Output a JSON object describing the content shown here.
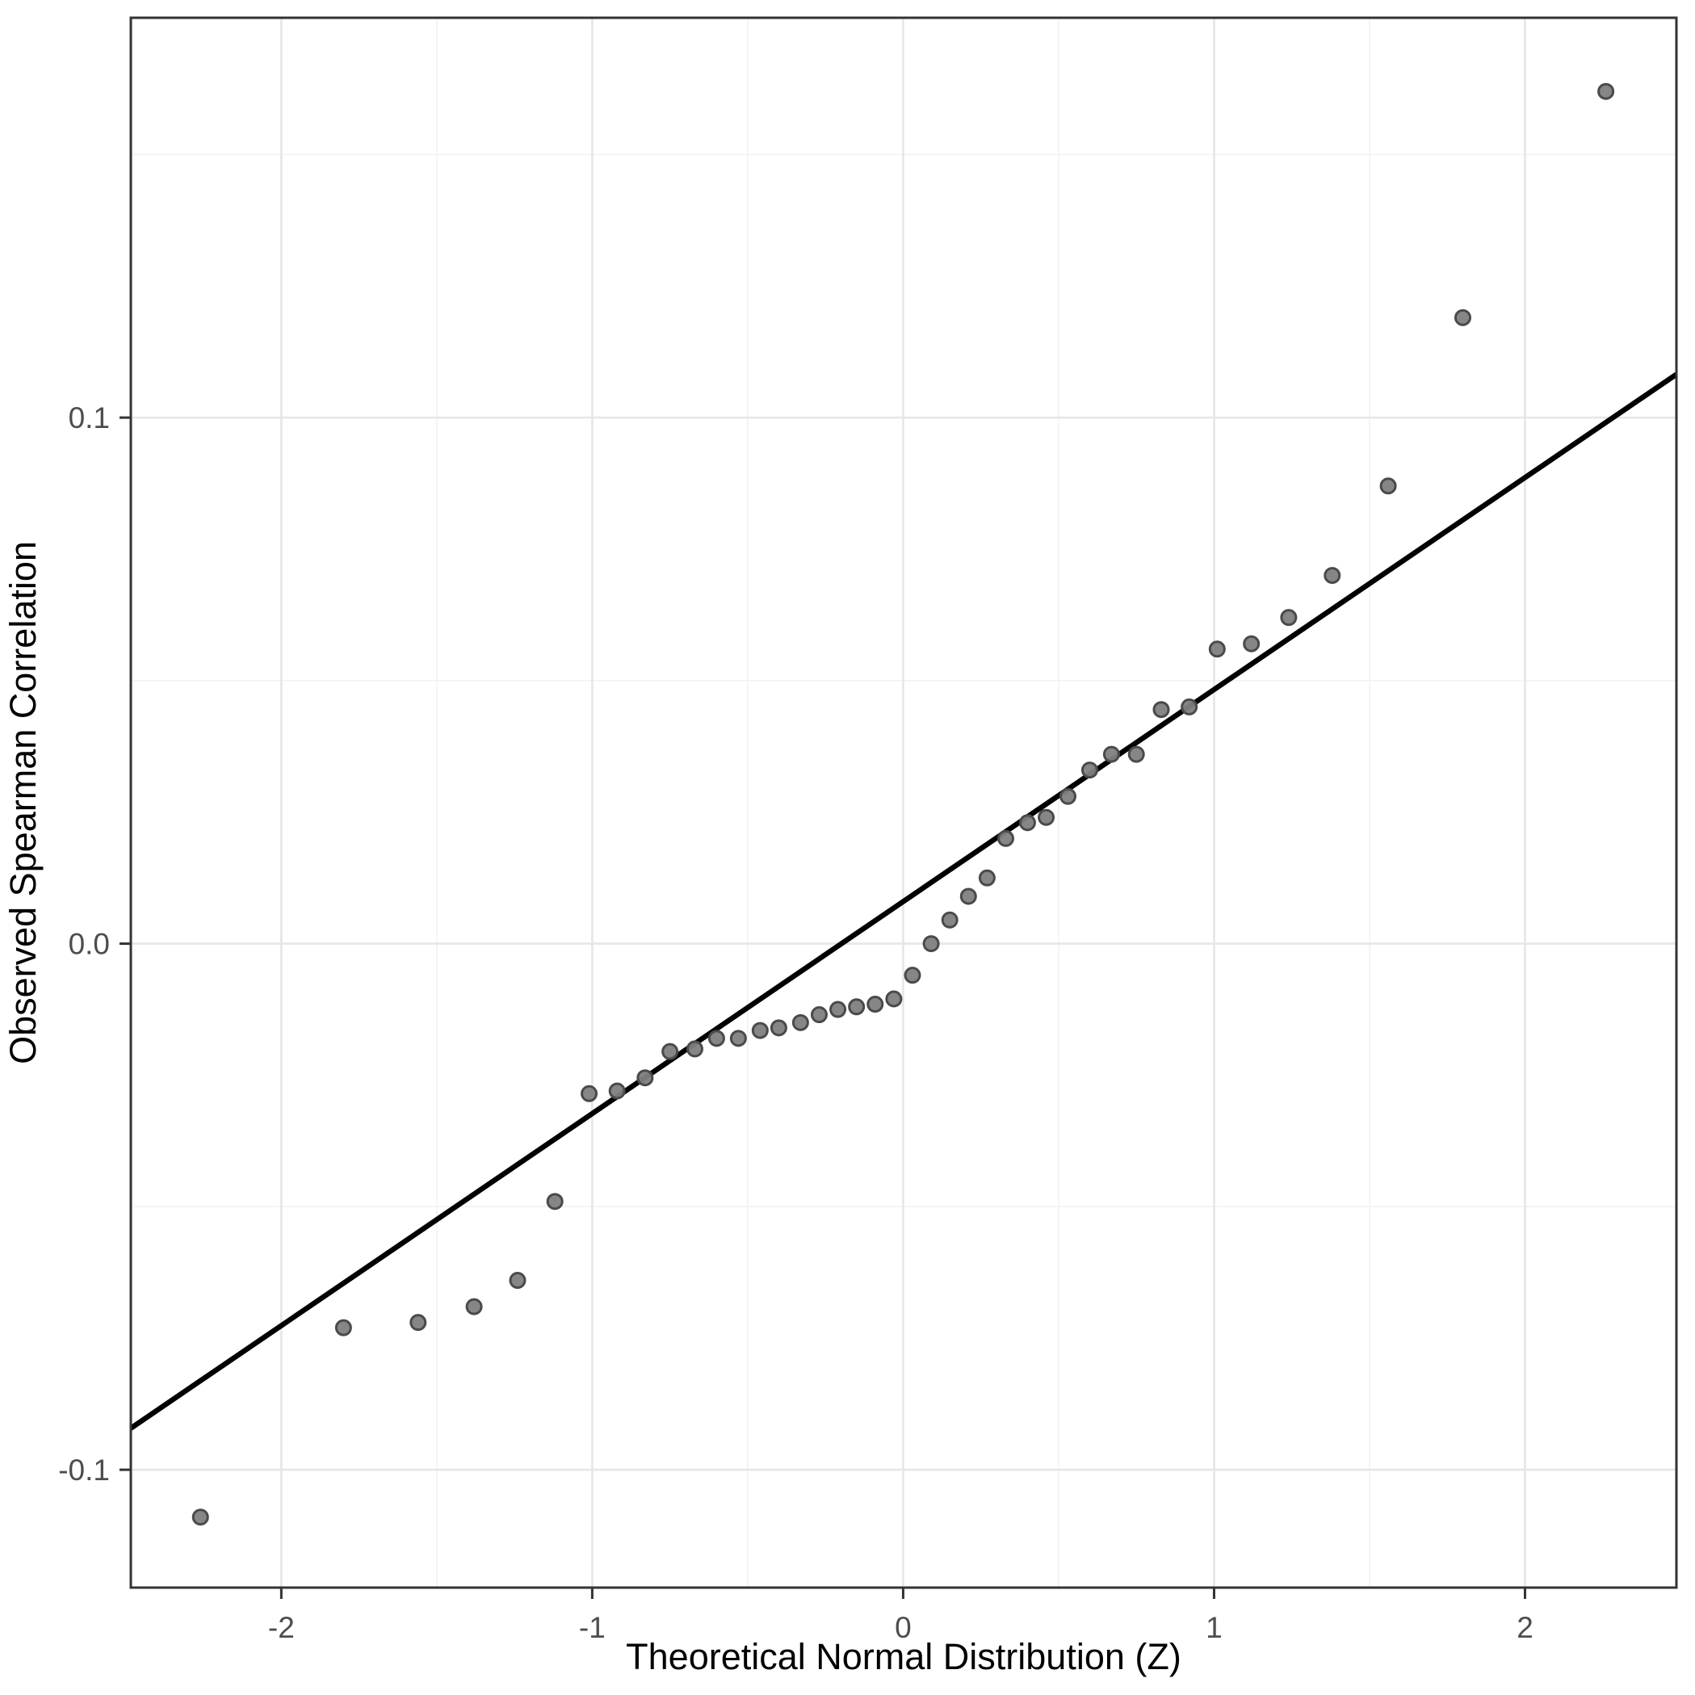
{
  "chart_data": {
    "type": "scatter",
    "title": "",
    "xlabel": "Theoretical Normal Distribution (Z)",
    "ylabel": "Observed Spearman Correlation",
    "xlim": [
      -2.484,
      2.487
    ],
    "ylim": [
      -0.1224,
      0.176
    ],
    "grid": true,
    "legend": false,
    "x_axis": {
      "major_ticks": [
        -2,
        -1,
        0,
        1,
        2
      ],
      "major_tick_labels": [
        "-2",
        "-1",
        "0",
        "1",
        "2"
      ],
      "minor_ticks": [
        -1.5,
        -0.5,
        0.5,
        1.5
      ]
    },
    "y_axis": {
      "major_ticks": [
        -0.1,
        0.0,
        0.1
      ],
      "major_tick_labels": [
        "-0.1",
        "0.0",
        "0.1"
      ],
      "minor_ticks": [
        -0.05,
        0.05,
        0.15
      ]
    },
    "reference_line": {
      "slope": 0.0403,
      "intercept": 0.008
    },
    "points": [
      [
        -2.26,
        -0.109
      ],
      [
        -1.8,
        -0.073
      ],
      [
        -1.56,
        -0.072
      ],
      [
        -1.38,
        -0.069
      ],
      [
        -1.24,
        -0.064
      ],
      [
        -1.12,
        -0.049
      ],
      [
        -1.01,
        -0.0285
      ],
      [
        -0.92,
        -0.028
      ],
      [
        -0.83,
        -0.0255
      ],
      [
        -0.75,
        -0.0205
      ],
      [
        -0.67,
        -0.02
      ],
      [
        -0.6,
        -0.018
      ],
      [
        -0.53,
        -0.018
      ],
      [
        -0.46,
        -0.0165
      ],
      [
        -0.4,
        -0.016
      ],
      [
        -0.33,
        -0.015
      ],
      [
        -0.27,
        -0.0135
      ],
      [
        -0.21,
        -0.0125
      ],
      [
        -0.15,
        -0.012
      ],
      [
        -0.09,
        -0.0115
      ],
      [
        -0.03,
        -0.0105
      ],
      [
        0.03,
        -0.006
      ],
      [
        0.09,
        0.0
      ],
      [
        0.15,
        0.0045
      ],
      [
        0.21,
        0.009
      ],
      [
        0.27,
        0.0125
      ],
      [
        0.33,
        0.02
      ],
      [
        0.4,
        0.023
      ],
      [
        0.46,
        0.024
      ],
      [
        0.53,
        0.028
      ],
      [
        0.6,
        0.033
      ],
      [
        0.67,
        0.036
      ],
      [
        0.75,
        0.036
      ],
      [
        0.83,
        0.0445
      ],
      [
        0.92,
        0.045
      ],
      [
        1.01,
        0.056
      ],
      [
        1.12,
        0.057
      ],
      [
        1.24,
        0.062
      ],
      [
        1.38,
        0.07
      ],
      [
        1.56,
        0.087
      ],
      [
        1.8,
        0.119
      ],
      [
        2.26,
        0.162
      ]
    ],
    "colors": {
      "background": "#ffffff",
      "panel_background": "#ffffff",
      "panel_border": "#333333",
      "grid_major": "#e6e6e6",
      "grid_minor": "#f2f2f2",
      "point_fill": "#808080",
      "point_stroke": "#4a4a4a",
      "reference_line": "#000000",
      "tick": "#333333",
      "tick_label": "#4d4d4d",
      "axis_title": "#000000"
    }
  }
}
